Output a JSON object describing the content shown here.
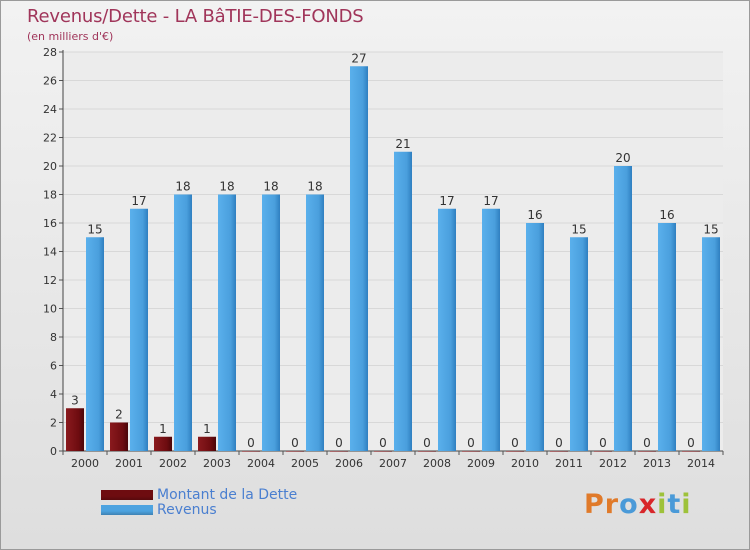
{
  "header": {
    "title": "Revenus/Dette - LA BâTIE-DES-FONDS",
    "subtitle": "(en milliers d'€)"
  },
  "legend": {
    "items": [
      {
        "label": "Montant de la Dette",
        "color": "#6e0c10"
      },
      {
        "label": "Revenus",
        "color": "#4da3e0"
      }
    ]
  },
  "logo": {
    "letters": [
      {
        "char": "P",
        "color": "#e07a2a"
      },
      {
        "char": "r",
        "color": "#e07a2a"
      },
      {
        "char": "o",
        "color": "#4a9ad8"
      },
      {
        "char": "x",
        "color": "#d8262a"
      },
      {
        "char": "i",
        "color": "#9ec23a"
      },
      {
        "char": "t",
        "color": "#4a9ad8"
      },
      {
        "char": "i",
        "color": "#9ec23a"
      }
    ]
  },
  "colors": {
    "dette": "#6e0c10",
    "revenus": "#4da3e0",
    "axis_text": "#333333",
    "grid": "#d8d8d8"
  },
  "chart_data": {
    "type": "bar",
    "title": "Revenus/Dette - LA BâTIE-DES-FONDS",
    "ylabel": "(en milliers d'€)",
    "xlabel": "",
    "ylim": [
      0,
      28
    ],
    "yticks": [
      0,
      2,
      4,
      6,
      8,
      10,
      12,
      14,
      16,
      18,
      20,
      22,
      24,
      26,
      28
    ],
    "grid": true,
    "legend_position": "bottom-left",
    "categories": [
      "2000",
      "2001",
      "2002",
      "2003",
      "2004",
      "2005",
      "2006",
      "2007",
      "2008",
      "2009",
      "2010",
      "2011",
      "2012",
      "2013",
      "2014"
    ],
    "series": [
      {
        "name": "Montant de la Dette",
        "values": [
          3,
          2,
          1,
          1,
          0,
          0,
          0,
          0,
          0,
          0,
          0,
          0,
          0,
          0,
          0
        ]
      },
      {
        "name": "Revenus",
        "values": [
          15,
          17,
          18,
          18,
          18,
          18,
          27,
          21,
          17,
          17,
          16,
          15,
          20,
          16,
          15
        ]
      }
    ]
  }
}
